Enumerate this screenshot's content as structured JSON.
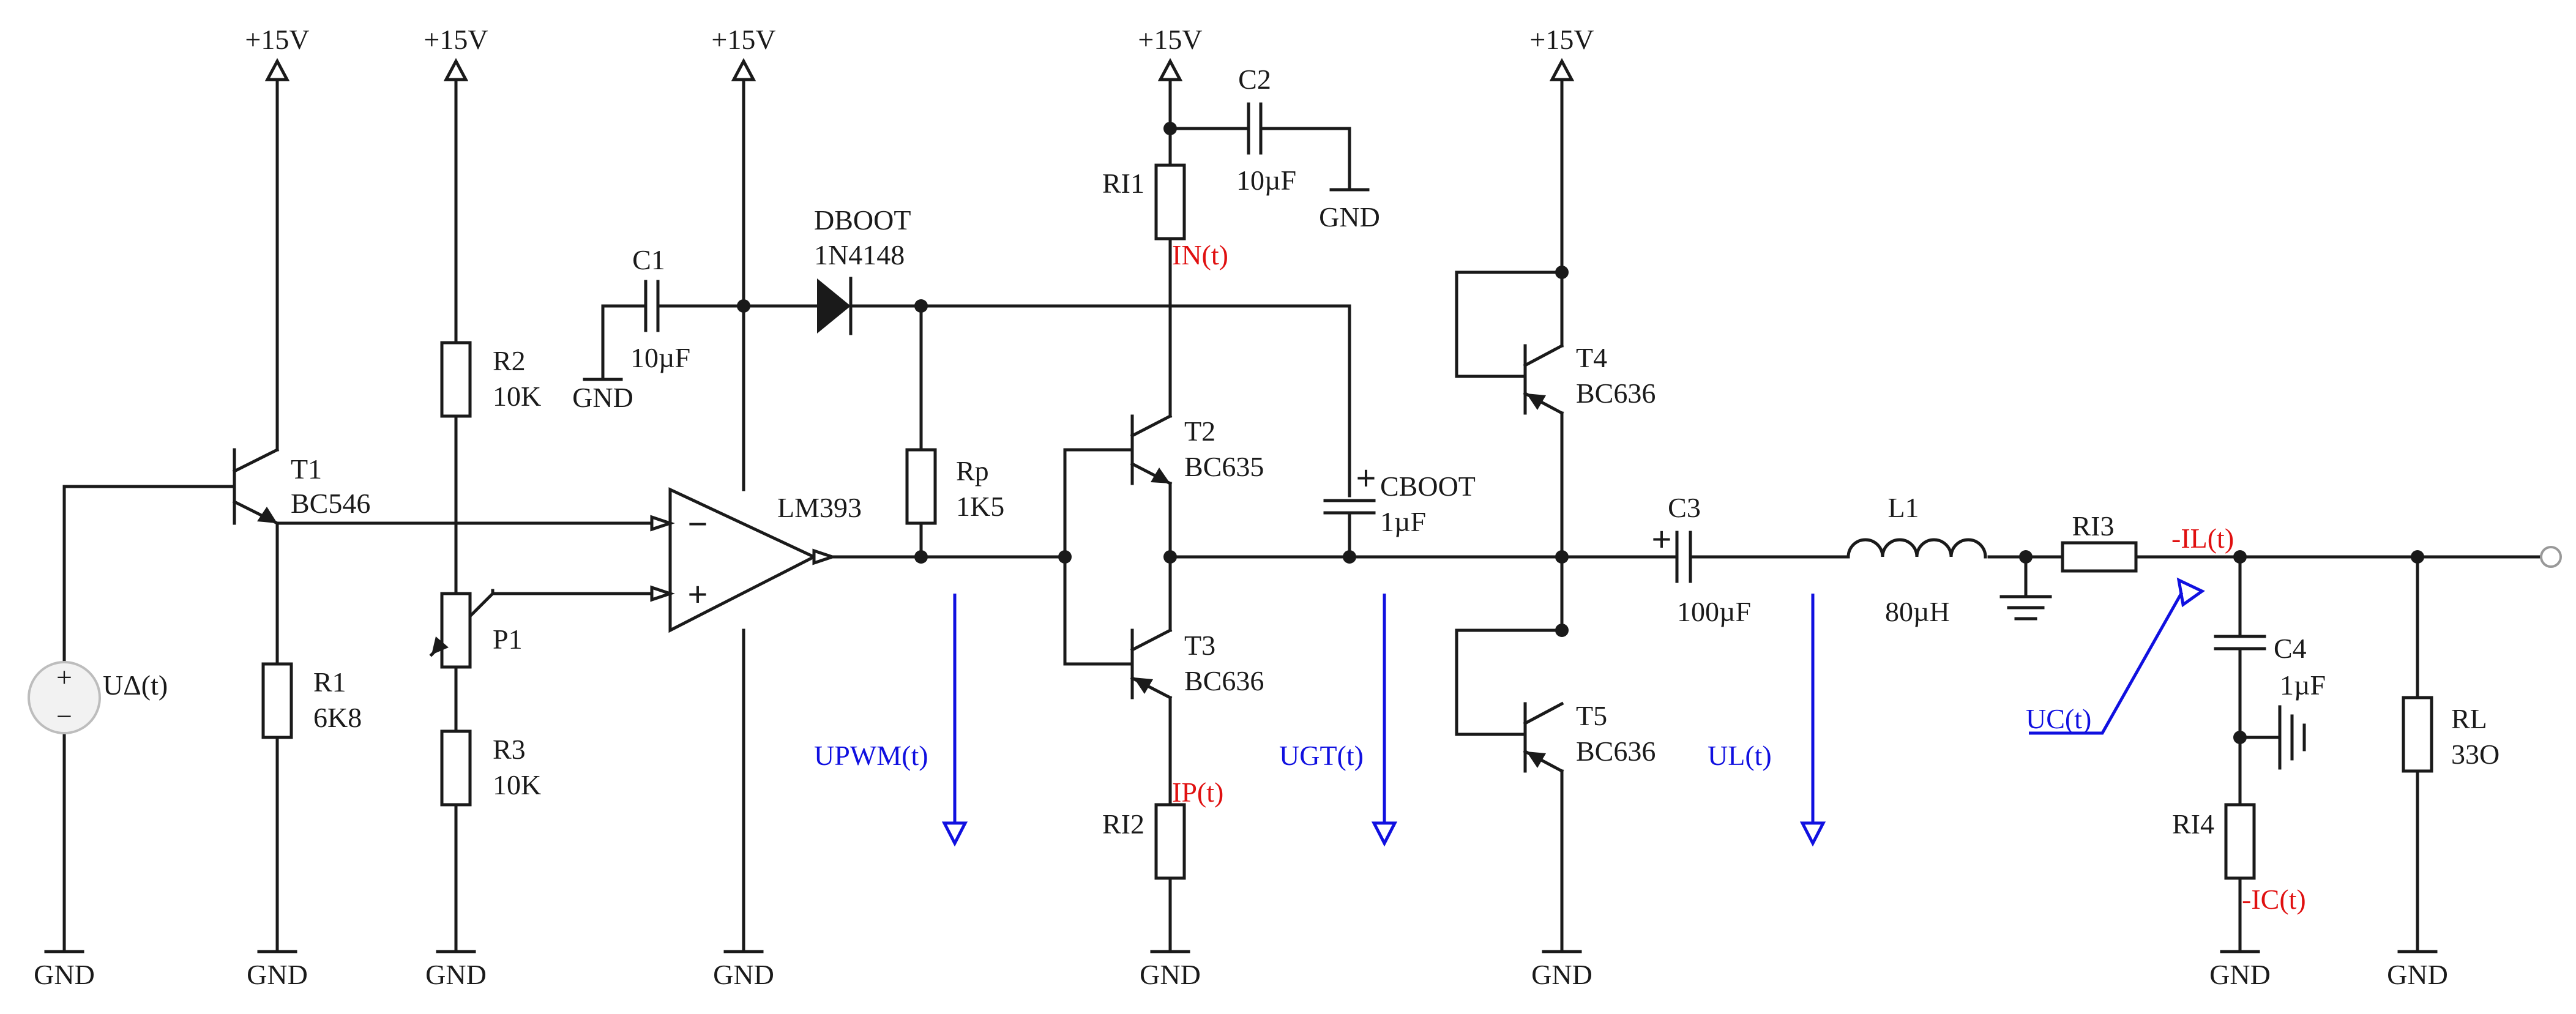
{
  "supply": {
    "label": "+15V",
    "ground": "GND"
  },
  "transistors": {
    "t1": {
      "name": "T1",
      "type": "BC546"
    },
    "t2": {
      "name": "T2",
      "type": "BC635"
    },
    "t3": {
      "name": "T3",
      "type": "BC636"
    },
    "t4": {
      "name": "T4",
      "type": "BC636"
    },
    "t5": {
      "name": "T5",
      "type": "BC636"
    }
  },
  "resistors": {
    "r1": {
      "name": "R1",
      "value": "6K8"
    },
    "r2": {
      "name": "R2",
      "value": "10K"
    },
    "r3": {
      "name": "R3",
      "value": "10K"
    },
    "rp": {
      "name": "Rp",
      "value": "1K5"
    },
    "ri1": {
      "name": "RI1"
    },
    "ri2": {
      "name": "RI2"
    },
    "ri3": {
      "name": "RI3"
    },
    "ri4": {
      "name": "RI4"
    },
    "rl": {
      "name": "RL",
      "value": "33O"
    }
  },
  "potentiometer": {
    "name": "P1"
  },
  "capacitors": {
    "c1": {
      "name": "C1",
      "value": "10µF"
    },
    "c2": {
      "name": "C2",
      "value": "10µF"
    },
    "cboot": {
      "name": "CBOOT",
      "value": "1µF"
    },
    "c3": {
      "name": "C3",
      "value": "100µF"
    },
    "c4": {
      "name": "C4",
      "value": "1µF"
    }
  },
  "diode": {
    "name": "DBOOT",
    "type": "1N4148"
  },
  "comparator": {
    "name": "LM393",
    "minus": "−",
    "plus": "+"
  },
  "inductor": {
    "name": "L1",
    "value": "80µH"
  },
  "source": {
    "name": "UΔ(t)",
    "plus": "+",
    "minus": "−"
  },
  "capacitor_polarity": "+",
  "voltage_probes": {
    "upwm": "UPWM(t)",
    "ugt": "UGT(t)",
    "ul": "UL(t)",
    "uc": "UC(t)"
  },
  "current_probes": {
    "in": "IN(t)",
    "ip": "IP(t)",
    "il": "-IL(t)",
    "ic": "-IC(t)"
  },
  "colors": {
    "wire": "#1a1a1a",
    "voltage_probe": "#1010e0",
    "current_probe": "#e01010"
  }
}
